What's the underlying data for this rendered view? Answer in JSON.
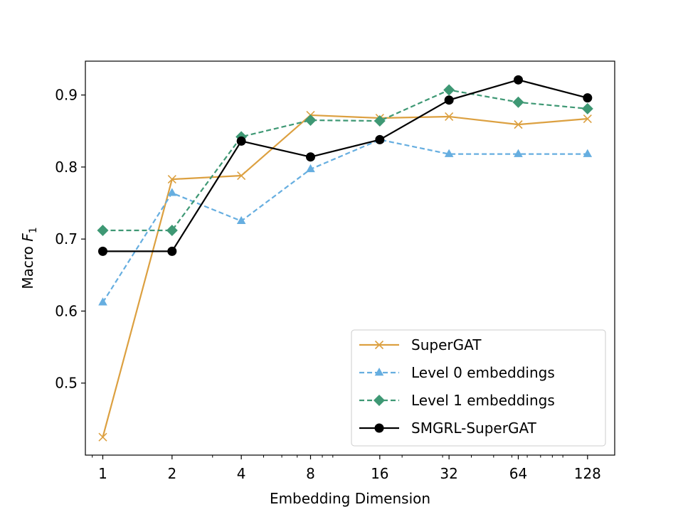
{
  "chart_data": {
    "type": "line",
    "title": "",
    "xlabel": "Embedding Dimension",
    "ylabel_text": "Macro",
    "ylabel_math": "F",
    "ylabel_subscript": "1",
    "x_scale": "log2",
    "x": [
      1,
      2,
      4,
      8,
      16,
      32,
      64,
      128
    ],
    "x_tick_labels": [
      "1",
      "2",
      "4",
      "8",
      "16",
      "32",
      "64",
      "128"
    ],
    "xlim": [
      0.84,
      168
    ],
    "ylim": [
      0.4,
      0.947
    ],
    "y_ticks": [
      0.5,
      0.6,
      0.7,
      0.8,
      0.9
    ],
    "y_tick_labels": [
      "0.5",
      "0.6",
      "0.7",
      "0.8",
      "0.9"
    ],
    "legend_position": "lower-right",
    "series": [
      {
        "name": "SuperGAT",
        "color": "#dca040",
        "dash": "solid",
        "marker": "x",
        "values": [
          0.425,
          0.783,
          0.788,
          0.872,
          0.868,
          0.87,
          0.859,
          0.867
        ]
      },
      {
        "name": "Level 0 embeddings",
        "color": "#66aee0",
        "dash": "dashed",
        "marker": "triangle",
        "values": [
          0.612,
          0.764,
          0.725,
          0.797,
          0.838,
          0.818,
          0.818,
          0.818
        ]
      },
      {
        "name": "Level 1 embeddings",
        "color": "#3e9874",
        "dash": "dashed",
        "marker": "diamond",
        "values": [
          0.712,
          0.712,
          0.842,
          0.865,
          0.864,
          0.907,
          0.89,
          0.881
        ]
      },
      {
        "name": "SMGRL-SuperGAT",
        "color": "#000000",
        "dash": "solid",
        "marker": "circle",
        "values": [
          0.683,
          0.683,
          0.836,
          0.814,
          0.838,
          0.893,
          0.921,
          0.896
        ]
      }
    ]
  }
}
